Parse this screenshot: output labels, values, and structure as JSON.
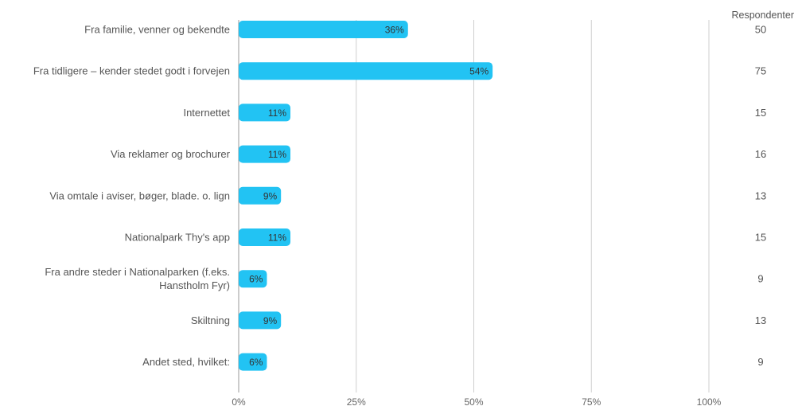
{
  "chart_data": {
    "type": "bar",
    "orientation": "horizontal",
    "categories": [
      [
        "Fra familie, venner og bekendte"
      ],
      [
        "Fra tidligere – kender stedet godt i forvejen"
      ],
      [
        "Internettet"
      ],
      [
        "Via reklamer og brochurer"
      ],
      [
        "Via omtale i aviser, bøger, blade. o. lign"
      ],
      [
        "Nationalpark Thy's app"
      ],
      [
        "Fra andre steder i Nationalparken (f.eks.",
        "Hanstholm Fyr)"
      ],
      [
        "Skiltning"
      ],
      [
        "Andet sted, hvilket:"
      ]
    ],
    "values": [
      36,
      54,
      11,
      11,
      9,
      11,
      6,
      9,
      6
    ],
    "value_labels": [
      "36%",
      "54%",
      "11%",
      "11%",
      "9%",
      "11%",
      "6%",
      "9%",
      "6%"
    ],
    "respondents_header": "Respondenter",
    "respondents": [
      "50",
      "75",
      "15",
      "16",
      "13",
      "15",
      "9",
      "13",
      "9"
    ],
    "xlim": [
      0,
      100
    ],
    "x_ticks": [
      0,
      25,
      50,
      75,
      100
    ],
    "x_tick_labels": [
      "0%",
      "25%",
      "50%",
      "75%",
      "100%"
    ],
    "grid": true,
    "bar_color": "#22c3f3",
    "grid_color": "#cfcfcf"
  }
}
